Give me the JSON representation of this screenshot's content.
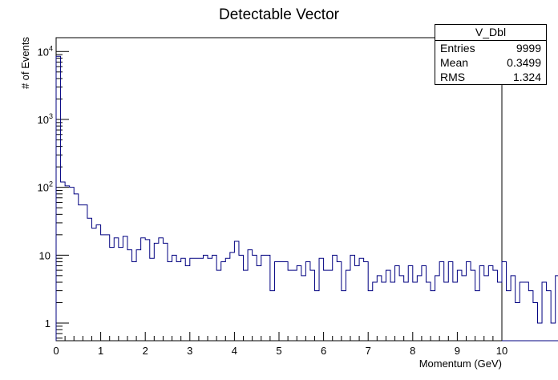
{
  "chart_data": {
    "type": "histogram",
    "title": "Detectable Vector",
    "xlabel": "Momentum (GeV)",
    "ylabel": "# of Events",
    "xlim": [
      0,
      10
    ],
    "ylim": [
      0.55,
      16000
    ],
    "log_y": true,
    "bin_width": 0.1,
    "line_color": "#000080",
    "x_ticks": [
      "0",
      "1",
      "2",
      "3",
      "4",
      "5",
      "6",
      "7",
      "8",
      "9",
      "10"
    ],
    "y_ticks": [
      {
        "value": 1,
        "label": "1"
      },
      {
        "value": 10,
        "label": "10"
      },
      {
        "value": 100,
        "label": "10",
        "exp": "2"
      },
      {
        "value": 1000,
        "label": "10",
        "exp": "3"
      },
      {
        "value": 10000,
        "label": "10",
        "exp": "4"
      }
    ],
    "values": [
      8500,
      120,
      105,
      100,
      80,
      55,
      55,
      35,
      25,
      28,
      20,
      20,
      13,
      18,
      13,
      19,
      12,
      8,
      12,
      18,
      17,
      9,
      15,
      18,
      15,
      8,
      10,
      8,
      9,
      7,
      9,
      9,
      9,
      10,
      9,
      10,
      6,
      8,
      9,
      11,
      16,
      10,
      6,
      12,
      10,
      7,
      10,
      10,
      3,
      8,
      8,
      8,
      6,
      6,
      7,
      5,
      8,
      6,
      3,
      9,
      6,
      6,
      10,
      8,
      3,
      6,
      10,
      7,
      9,
      8,
      3,
      4,
      5,
      4,
      6,
      4,
      7,
      5,
      4,
      7,
      4,
      5,
      7,
      4,
      3,
      5,
      8,
      4,
      8,
      4,
      6,
      5,
      8,
      6,
      3,
      7,
      5,
      7,
      6,
      4,
      8,
      3,
      5,
      2,
      4,
      4,
      3,
      2,
      1,
      4,
      3,
      1,
      5,
      5,
      1,
      1,
      3,
      0,
      0,
      0
    ],
    "stats": {
      "name": "V_Dbl",
      "rows": [
        {
          "label": "Entries",
          "value": "9999"
        },
        {
          "label": "Mean",
          "value": "0.3499"
        },
        {
          "label": "RMS",
          "value": "1.324"
        }
      ]
    }
  }
}
